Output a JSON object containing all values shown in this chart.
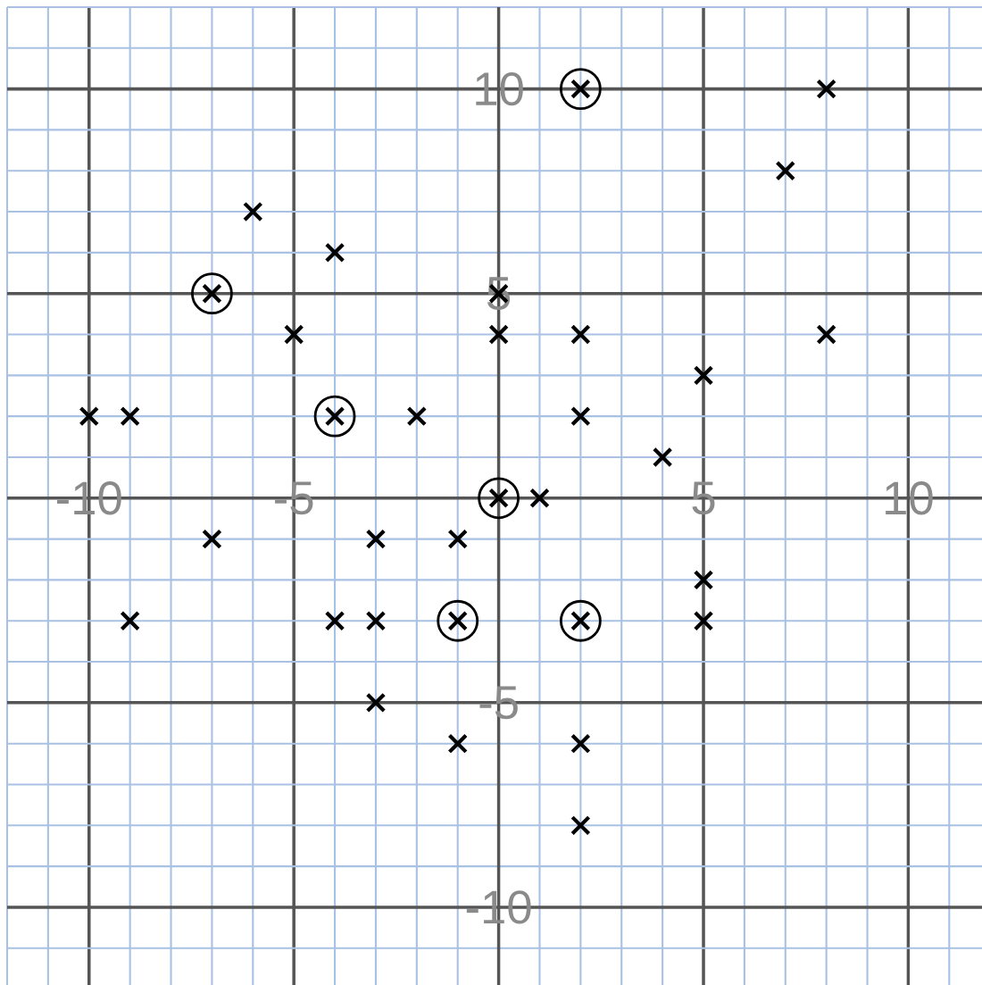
{
  "chart_data": {
    "type": "scatter",
    "xlim": [
      -12,
      11.8
    ],
    "ylim": [
      -11.9,
      12
    ],
    "xticks": [
      -10,
      -5,
      5,
      10
    ],
    "yticks": [
      -10,
      -5,
      5,
      10
    ],
    "grid": true,
    "series": [
      {
        "color": "#000000",
        "marker": "cross",
        "x": [
          8,
          2,
          7,
          -6,
          -4,
          -7,
          0,
          -5,
          0,
          2,
          8,
          5,
          -10,
          -9,
          -4,
          -2,
          2,
          4,
          0,
          1,
          -7,
          -3,
          -1,
          5,
          -9,
          -4,
          -3,
          -1,
          2,
          5,
          -3,
          -1,
          2,
          2
        ],
        "values": [
          10,
          10,
          8,
          7,
          6,
          5,
          5,
          4,
          4,
          4,
          4,
          3,
          2,
          2,
          2,
          2,
          2,
          1,
          0,
          0,
          -1,
          -1,
          -1,
          -2,
          -3,
          -3,
          -3,
          -3,
          -3,
          -3,
          -5,
          -6,
          -6,
          -8
        ]
      },
      {
        "color": "#000000",
        "marker": "circle",
        "x": [
          2,
          -7,
          -4,
          0,
          -1,
          2
        ],
        "values": [
          10,
          5,
          2,
          0,
          -3,
          -3
        ]
      }
    ]
  }
}
